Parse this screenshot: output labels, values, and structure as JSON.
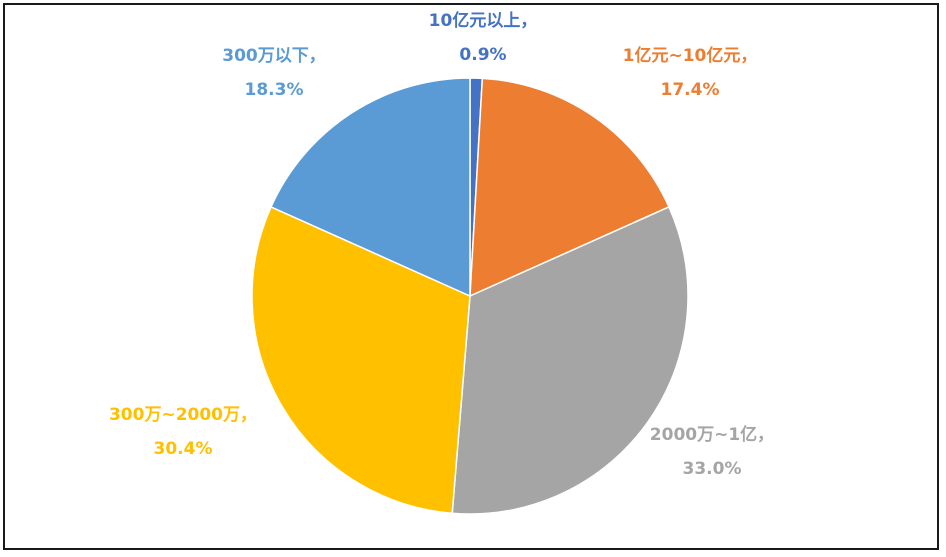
{
  "chart_data": {
    "type": "pie",
    "title": "",
    "slices": [
      {
        "label": "10亿元以上，",
        "value": 0.9,
        "value_text": "0.9%",
        "color": "#4472C4"
      },
      {
        "label": "1亿元~10亿元，",
        "value": 17.4,
        "value_text": "17.4%",
        "color": "#ED7D31"
      },
      {
        "label": "2000万~1亿，",
        "value": 33.0,
        "value_text": "33.0%",
        "color": "#A5A5A5"
      },
      {
        "label": "300万~2000万，",
        "value": 30.4,
        "value_text": "30.4%",
        "color": "#FFC000"
      },
      {
        "label": "300万以下，",
        "value": 18.3,
        "value_text": "18.3%",
        "color": "#5B9BD5"
      }
    ],
    "start_angle_deg": 0,
    "direction": "clockwise",
    "legend": "none",
    "data_labels": "outside"
  }
}
